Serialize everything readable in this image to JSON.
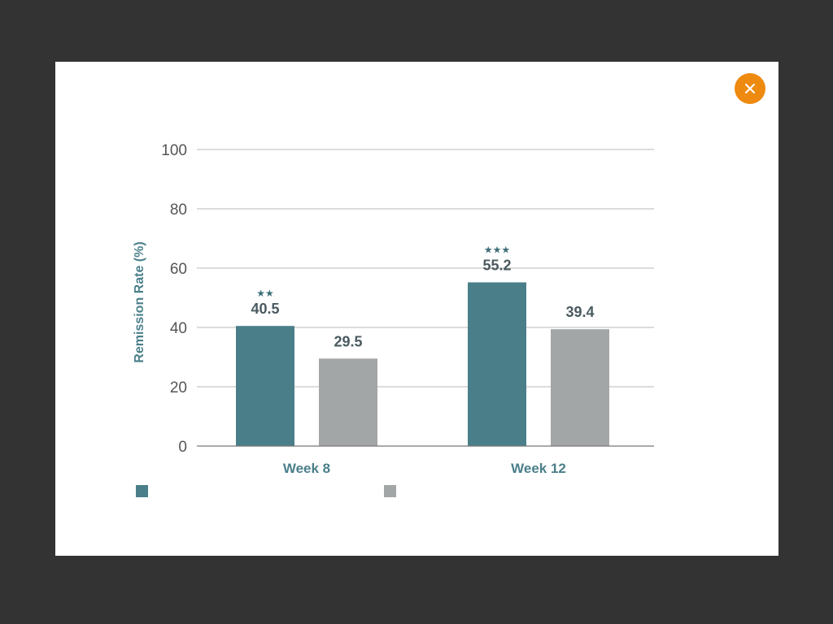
{
  "modal": {
    "close_icon": "close-icon",
    "close_color": "#ee8a0f"
  },
  "chart_data": {
    "type": "bar",
    "categories": [
      "Week 8",
      "Week 12"
    ],
    "series": [
      {
        "values": [
          40.5,
          55.2
        ],
        "color": "#4a7f8a",
        "significance": [
          "★★",
          "★★★"
        ]
      },
      {
        "values": [
          29.5,
          39.4
        ],
        "color": "#a3a6a7",
        "significance": [
          "",
          ""
        ]
      }
    ],
    "value_labels": [
      [
        "40.5",
        "55.2"
      ],
      [
        "29.5",
        "39.4"
      ]
    ],
    "ylabel": "Remission Rate (%)",
    "ylim": [
      0,
      100
    ],
    "yticks": [
      0,
      20,
      40,
      60,
      80,
      100
    ],
    "grid": true,
    "legend_position": "bottom-left"
  }
}
